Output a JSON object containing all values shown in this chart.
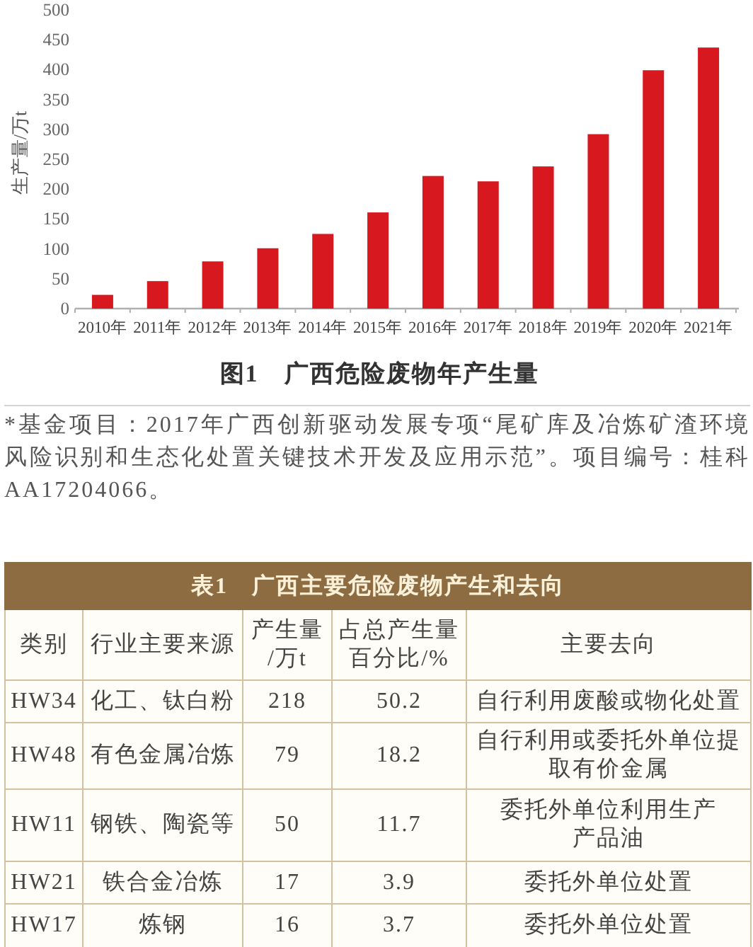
{
  "chart_data": [
    {
      "type": "bar",
      "title": "图1　广西危险废物年产生量",
      "ylabel": "生产量/万t",
      "categories": [
        "2010年",
        "2011年",
        "2012年",
        "2013年",
        "2014年",
        "2015年",
        "2016年",
        "2017年",
        "2018年",
        "2019年",
        "2020年",
        "2021年"
      ],
      "values": [
        23,
        46,
        79,
        101,
        125,
        161,
        222,
        213,
        238,
        292,
        399,
        437
      ],
      "color": "#d7191f",
      "ylim": [
        0,
        500
      ],
      "yticks": [
        0,
        50,
        100,
        150,
        200,
        250,
        300,
        350,
        400,
        450,
        500
      ],
      "annotations": [
        "*基金项目：2017年广西创新驱动发展专项“尾矿库及冶炼矿渣环境风险识别和生态化处置关键技术开发及应用示范”。项目编号：桂科AA17204066。"
      ]
    },
    {
      "type": "other",
      "title": "表1　广西主要危险废物产生和去向",
      "annotations": [
        "类别",
        "行业主要来源",
        "产生量\n/万t",
        "占总产生量百分比/%",
        "主要去向",
        "HW34",
        "化工、钛白粉",
        "218",
        "50.2",
        "自行利用废酸或物化处置",
        "HW48",
        "有色金属冶炼",
        "79",
        "18.2",
        "自行利用或委托外单位提取有价金属",
        "HW11",
        "钢铁、陶瓷等",
        "50",
        "11.7",
        "委托外单位利用生产产品油",
        "HW21",
        "铁合金冶炼",
        "17",
        "3.9",
        "委托外单位处置",
        "HW17",
        "炼钢",
        "16",
        "3.7",
        "委托外单位处置"
      ]
    }
  ]
}
